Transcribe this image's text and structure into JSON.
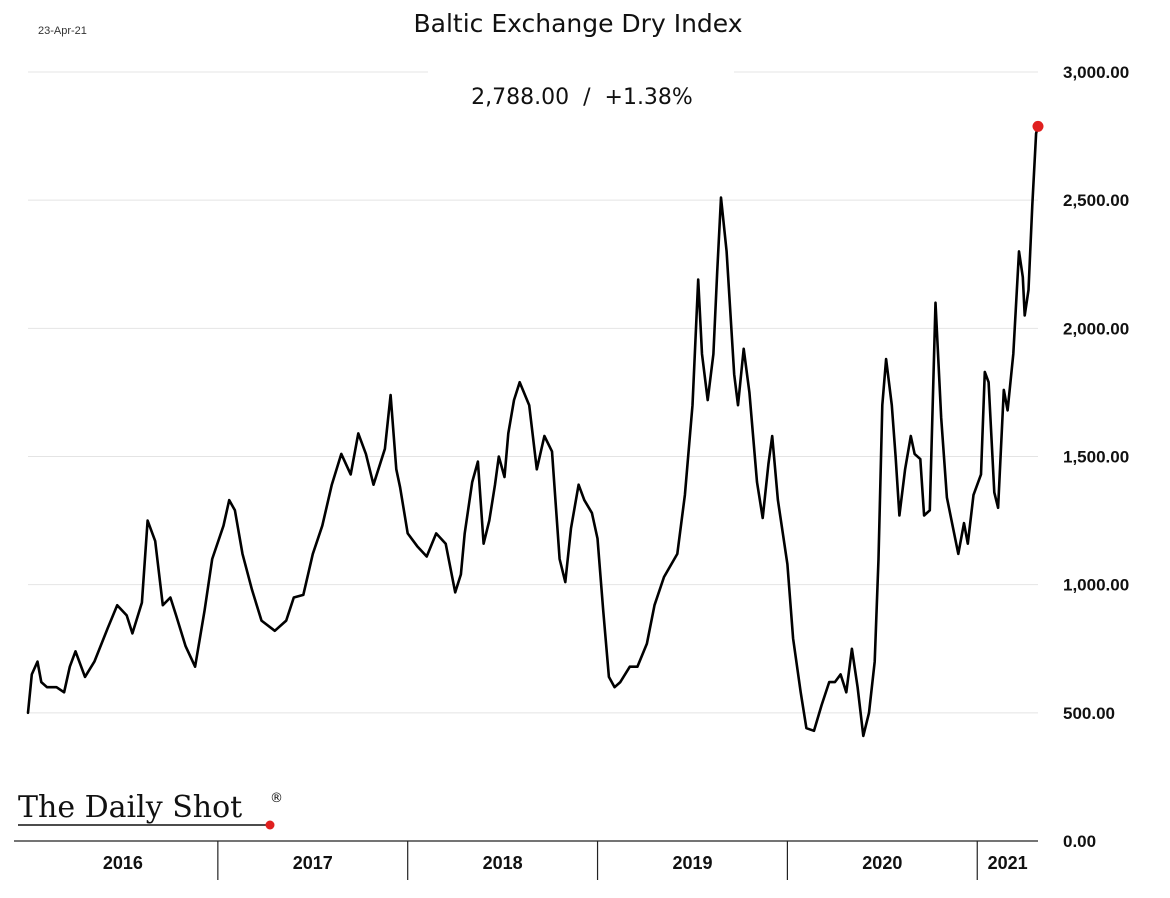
{
  "date_label": "23-Apr-21",
  "logo_text": "The Daily Shot",
  "logo_mark": "®",
  "chart_data": {
    "type": "line",
    "title": "Baltic Exchange Dry Index",
    "subtitle": "2,788.00  /  +1.38%",
    "y_range": [
      0,
      3000
    ],
    "y_ticks": [
      0,
      500,
      1000,
      1500,
      2000,
      2500,
      3000
    ],
    "y_tick_labels": [
      "0.00",
      "500.00",
      "1,000.00",
      "1,500.00",
      "2,000.00",
      "2,500.00",
      "3,000.00"
    ],
    "x_range": [
      2016.0,
      2021.32
    ],
    "x_categories": [
      "2016",
      "2017",
      "2018",
      "2019",
      "2020",
      "2021"
    ],
    "x_boundaries": [
      2016,
      2017,
      2018,
      2019,
      2020,
      2021
    ],
    "grid": "horizontal",
    "last_point_color": "#e0201f",
    "line_color": "#000000",
    "series": [
      {
        "values": [
          [
            2016.0,
            500
          ],
          [
            2016.02,
            650
          ],
          [
            2016.05,
            700
          ],
          [
            2016.07,
            620
          ],
          [
            2016.1,
            600
          ],
          [
            2016.15,
            600
          ],
          [
            2016.19,
            580
          ],
          [
            2016.22,
            680
          ],
          [
            2016.25,
            740
          ],
          [
            2016.3,
            640
          ],
          [
            2016.35,
            700
          ],
          [
            2016.42,
            830
          ],
          [
            2016.47,
            920
          ],
          [
            2016.52,
            880
          ],
          [
            2016.55,
            810
          ],
          [
            2016.6,
            930
          ],
          [
            2016.63,
            1250
          ],
          [
            2016.67,
            1170
          ],
          [
            2016.71,
            920
          ],
          [
            2016.75,
            950
          ],
          [
            2016.78,
            880
          ],
          [
            2016.83,
            760
          ],
          [
            2016.88,
            680
          ],
          [
            2016.93,
            900
          ],
          [
            2016.97,
            1100
          ],
          [
            2017.03,
            1230
          ],
          [
            2017.06,
            1330
          ],
          [
            2017.09,
            1290
          ],
          [
            2017.13,
            1120
          ],
          [
            2017.18,
            980
          ],
          [
            2017.23,
            860
          ],
          [
            2017.3,
            820
          ],
          [
            2017.36,
            860
          ],
          [
            2017.4,
            950
          ],
          [
            2017.45,
            960
          ],
          [
            2017.5,
            1120
          ],
          [
            2017.55,
            1230
          ],
          [
            2017.6,
            1390
          ],
          [
            2017.65,
            1510
          ],
          [
            2017.7,
            1430
          ],
          [
            2017.74,
            1590
          ],
          [
            2017.78,
            1510
          ],
          [
            2017.82,
            1390
          ],
          [
            2017.88,
            1530
          ],
          [
            2017.91,
            1740
          ],
          [
            2017.94,
            1450
          ],
          [
            2017.96,
            1380
          ],
          [
            2018.0,
            1200
          ],
          [
            2018.05,
            1150
          ],
          [
            2018.1,
            1110
          ],
          [
            2018.15,
            1200
          ],
          [
            2018.2,
            1160
          ],
          [
            2018.25,
            970
          ],
          [
            2018.28,
            1040
          ],
          [
            2018.3,
            1200
          ],
          [
            2018.34,
            1400
          ],
          [
            2018.37,
            1480
          ],
          [
            2018.4,
            1160
          ],
          [
            2018.43,
            1250
          ],
          [
            2018.46,
            1390
          ],
          [
            2018.48,
            1500
          ],
          [
            2018.51,
            1420
          ],
          [
            2018.53,
            1590
          ],
          [
            2018.56,
            1720
          ],
          [
            2018.59,
            1790
          ],
          [
            2018.64,
            1700
          ],
          [
            2018.68,
            1450
          ],
          [
            2018.72,
            1580
          ],
          [
            2018.76,
            1520
          ],
          [
            2018.8,
            1100
          ],
          [
            2018.83,
            1010
          ],
          [
            2018.86,
            1220
          ],
          [
            2018.9,
            1390
          ],
          [
            2018.93,
            1330
          ],
          [
            2018.97,
            1280
          ],
          [
            2019.0,
            1180
          ],
          [
            2019.03,
            900
          ],
          [
            2019.06,
            640
          ],
          [
            2019.09,
            600
          ],
          [
            2019.12,
            620
          ],
          [
            2019.17,
            680
          ],
          [
            2019.21,
            680
          ],
          [
            2019.26,
            770
          ],
          [
            2019.3,
            920
          ],
          [
            2019.35,
            1030
          ],
          [
            2019.42,
            1120
          ],
          [
            2019.46,
            1350
          ],
          [
            2019.5,
            1700
          ],
          [
            2019.53,
            2190
          ],
          [
            2019.55,
            1900
          ],
          [
            2019.58,
            1720
          ],
          [
            2019.61,
            1900
          ],
          [
            2019.63,
            2220
          ],
          [
            2019.65,
            2510
          ],
          [
            2019.68,
            2300
          ],
          [
            2019.72,
            1820
          ],
          [
            2019.74,
            1700
          ],
          [
            2019.77,
            1920
          ],
          [
            2019.8,
            1750
          ],
          [
            2019.84,
            1400
          ],
          [
            2019.87,
            1260
          ],
          [
            2019.9,
            1470
          ],
          [
            2019.92,
            1580
          ],
          [
            2019.95,
            1330
          ],
          [
            2020.0,
            1080
          ],
          [
            2020.03,
            790
          ],
          [
            2020.07,
            580
          ],
          [
            2020.1,
            440
          ],
          [
            2020.14,
            430
          ],
          [
            2020.18,
            530
          ],
          [
            2020.22,
            620
          ],
          [
            2020.25,
            620
          ],
          [
            2020.28,
            650
          ],
          [
            2020.31,
            580
          ],
          [
            2020.34,
            750
          ],
          [
            2020.37,
            600
          ],
          [
            2020.4,
            410
          ],
          [
            2020.43,
            500
          ],
          [
            2020.46,
            700
          ],
          [
            2020.48,
            1100
          ],
          [
            2020.5,
            1700
          ],
          [
            2020.52,
            1880
          ],
          [
            2020.55,
            1700
          ],
          [
            2020.57,
            1500
          ],
          [
            2020.59,
            1270
          ],
          [
            2020.62,
            1450
          ],
          [
            2020.65,
            1580
          ],
          [
            2020.67,
            1510
          ],
          [
            2020.7,
            1490
          ],
          [
            2020.72,
            1270
          ],
          [
            2020.75,
            1290
          ],
          [
            2020.78,
            2100
          ],
          [
            2020.81,
            1650
          ],
          [
            2020.84,
            1340
          ],
          [
            2020.87,
            1230
          ],
          [
            2020.9,
            1120
          ],
          [
            2020.93,
            1240
          ],
          [
            2020.95,
            1160
          ],
          [
            2020.98,
            1350
          ],
          [
            2021.02,
            1430
          ],
          [
            2021.04,
            1830
          ],
          [
            2021.06,
            1790
          ],
          [
            2021.09,
            1360
          ],
          [
            2021.11,
            1300
          ],
          [
            2021.14,
            1760
          ],
          [
            2021.16,
            1680
          ],
          [
            2021.19,
            1900
          ],
          [
            2021.22,
            2300
          ],
          [
            2021.24,
            2200
          ],
          [
            2021.25,
            2050
          ],
          [
            2021.27,
            2150
          ],
          [
            2021.29,
            2480
          ],
          [
            2021.31,
            2760
          ],
          [
            2021.32,
            2788
          ]
        ]
      }
    ]
  }
}
